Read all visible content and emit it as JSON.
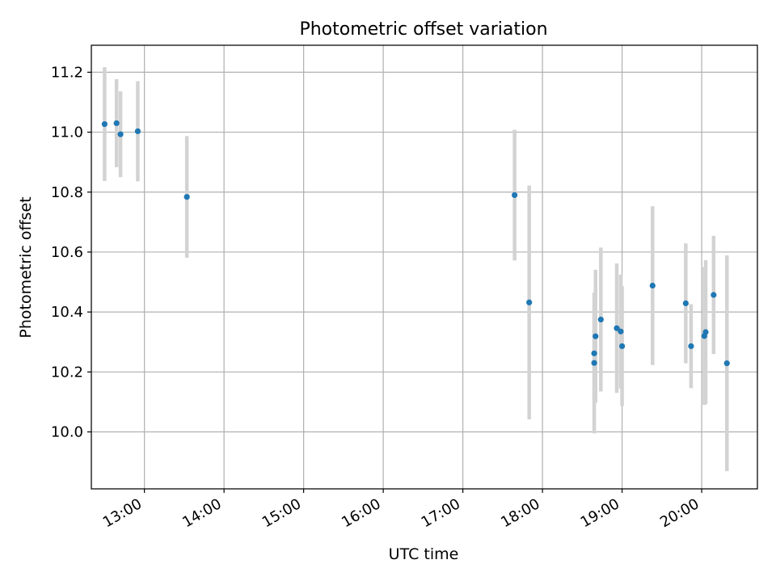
{
  "chart_data": {
    "type": "scatter",
    "title": "Photometric offset variation",
    "xlabel": "UTC time",
    "ylabel": "Photometric offset",
    "x_tick_labels": [
      "13:00",
      "14:00",
      "15:00",
      "16:00",
      "17:00",
      "18:00",
      "19:00",
      "20:00"
    ],
    "x_ticks": [
      "13:00",
      "14:00",
      "15:00",
      "16:00",
      "17:00",
      "18:00",
      "19:00",
      "20:00"
    ],
    "y_tick_labels": [
      "10.0",
      "10.2",
      "10.4",
      "10.6",
      "10.8",
      "11.0",
      "11.2"
    ],
    "y_ticks": [
      10.0,
      10.2,
      10.4,
      10.6,
      10.8,
      11.0,
      11.2
    ],
    "xlim": [
      "12:20",
      "20:42"
    ],
    "ylim": [
      9.81,
      11.29
    ],
    "grid": true,
    "series": [
      {
        "marker_color": "#1f77b4",
        "errorbar_color": "#d3d3d3",
        "points": [
          {
            "x": "12:30",
            "y": 11.027,
            "yerr": 0.19
          },
          {
            "x": "12:39",
            "y": 11.03,
            "yerr": 0.147
          },
          {
            "x": "12:42",
            "y": 10.993,
            "yerr": 0.143
          },
          {
            "x": "12:55",
            "y": 11.003,
            "yerr": 0.167
          },
          {
            "x": "13:32",
            "y": 10.784,
            "yerr": 0.203
          },
          {
            "x": "17:39",
            "y": 10.79,
            "yerr": 0.218
          },
          {
            "x": "17:50",
            "y": 10.432,
            "yerr": 0.39
          },
          {
            "x": "18:39",
            "y": 10.23,
            "yerr": 0.235
          },
          {
            "x": "18:39",
            "y": 10.262,
            "yerr": 0.16
          },
          {
            "x": "18:40",
            "y": 10.319,
            "yerr": 0.222
          },
          {
            "x": "18:44",
            "y": 10.375,
            "yerr": 0.24
          },
          {
            "x": "18:56",
            "y": 10.346,
            "yerr": 0.216
          },
          {
            "x": "18:59",
            "y": 10.335,
            "yerr": 0.19
          },
          {
            "x": "19:00",
            "y": 10.286,
            "yerr": 0.2
          },
          {
            "x": "19:23",
            "y": 10.488,
            "yerr": 0.265
          },
          {
            "x": "19:48",
            "y": 10.429,
            "yerr": 0.2
          },
          {
            "x": "19:52",
            "y": 10.286,
            "yerr": 0.14
          },
          {
            "x": "20:02",
            "y": 10.32,
            "yerr": 0.23
          },
          {
            "x": "20:03",
            "y": 10.333,
            "yerr": 0.24
          },
          {
            "x": "20:09",
            "y": 10.457,
            "yerr": 0.197
          },
          {
            "x": "20:19",
            "y": 10.229,
            "yerr": 0.36
          }
        ]
      }
    ]
  }
}
